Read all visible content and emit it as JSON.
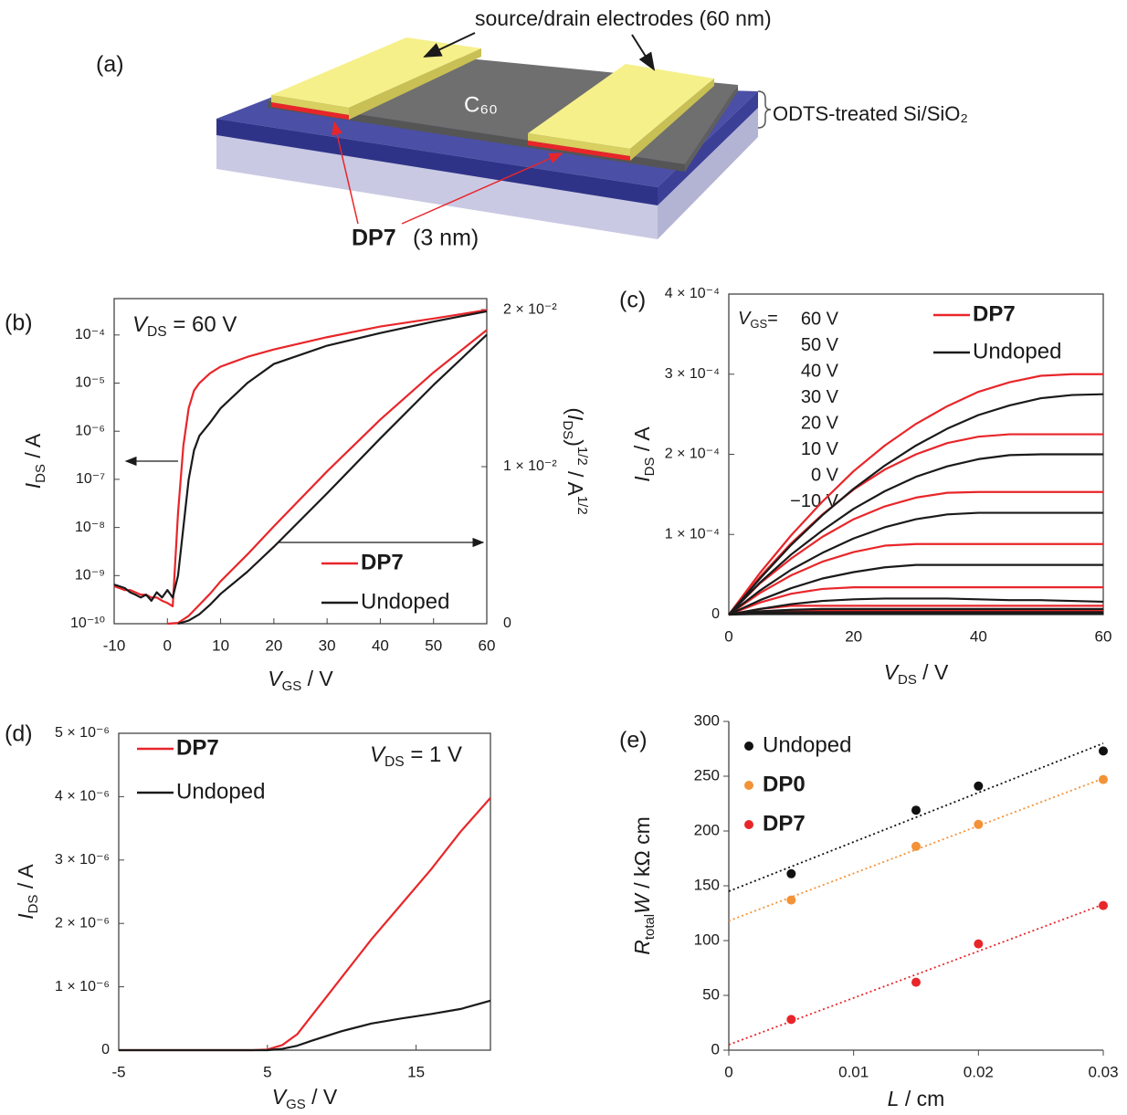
{
  "diagram": {
    "panel_label": "(a)",
    "electrodes_label": "source/drain electrodes (60 nm)",
    "semiconductor_label": "C₆₀",
    "substrate_label": "ODTS-treated Si/SiO₂",
    "dopant_name": "DP7",
    "dopant_thickness": "(3 nm)"
  },
  "chart_data": [
    {
      "type": "line",
      "panel_label": "(b)",
      "annotation": [
        {
          "text": "V",
          "style": "italic"
        },
        {
          "text": "DS",
          "style": "sub"
        },
        {
          "text": " = 60 V",
          "style": "plain"
        }
      ],
      "xlabel": [
        {
          "text": "V",
          "style": "italic"
        },
        {
          "text": "GS",
          "style": "sub"
        },
        {
          "text": " / V",
          "style": "plain"
        }
      ],
      "ylabel": [
        {
          "text": "I",
          "style": "italic"
        },
        {
          "text": "DS",
          "style": "sub"
        },
        {
          "text": " / A",
          "style": "plain"
        }
      ],
      "y2label": [
        {
          "text": "(",
          "style": "plain"
        },
        {
          "text": "I",
          "style": "italic"
        },
        {
          "text": "DS",
          "style": "sub"
        },
        {
          "text": ")",
          "style": "plain"
        },
        {
          "text": "1/2",
          "style": "sup"
        },
        {
          "text": " / A",
          "style": "plain"
        },
        {
          "text": "1/2",
          "style": "sup"
        }
      ],
      "xlim": [
        -10,
        60
      ],
      "xticks": [
        -10,
        0,
        10,
        20,
        30,
        40,
        50,
        60
      ],
      "yscale": "log",
      "ylim": [
        1e-10,
        0.00057
      ],
      "yticks": [
        {
          "value": 1e-10,
          "label": "10⁻¹⁰"
        },
        {
          "value": 1e-09,
          "label": "10⁻⁹"
        },
        {
          "value": 1e-08,
          "label": "10⁻⁸"
        },
        {
          "value": 1e-07,
          "label": "10⁻⁷"
        },
        {
          "value": 1e-06,
          "label": "10⁻⁶"
        },
        {
          "value": 1e-05,
          "label": "10⁻⁵"
        },
        {
          "value": 0.0001,
          "label": "10⁻⁴"
        }
      ],
      "y2lim": [
        0,
        0.0207
      ],
      "y2ticks": [
        0,
        {
          "value": 0.01,
          "label": "1 × 10⁻²"
        },
        {
          "value": 0.02,
          "label": "2 × 10⁻²"
        }
      ],
      "frame": true,
      "legend": "lower right",
      "series": [
        {
          "name": "DP7",
          "color": "#e8262a",
          "bold": true,
          "curves": [
            {
              "x": [
                -10,
                -9,
                -8,
                -7,
                -6,
                -5,
                -4,
                -3,
                -2,
                -1,
                0,
                1,
                2,
                3,
                4,
                5,
                6,
                8,
                10,
                15,
                20,
                30,
                40,
                50,
                60
              ],
              "values": [
                6e-10,
                5.5e-10,
                5e-10,
                5e-10,
                4.5e-10,
                4e-10,
                4e-10,
                3.5e-10,
                3.5e-10,
                3e-10,
                2.7e-10,
                2.3e-10,
                2e-08,
                5e-07,
                3e-06,
                7e-06,
                1e-05,
                1.6e-05,
                2.2e-05,
                3.5e-05,
                5e-05,
                9e-05,
                0.00015,
                0.00022,
                0.00033
              ]
            },
            {
              "axis": "y2",
              "x": [
                0,
                2,
                4,
                6,
                8,
                10,
                15,
                20,
                30,
                40,
                50,
                60
              ],
              "values": [
                0,
                5e-05,
                0.0005,
                0.0012,
                0.0019,
                0.0027,
                0.0044,
                0.0062,
                0.0097,
                0.013,
                0.016,
                0.0187
              ]
            }
          ]
        },
        {
          "name": "Undoped",
          "color": "#1a1a1a",
          "bold": false,
          "curves": [
            {
              "x": [
                -10,
                -9,
                -8,
                -7,
                -6,
                -5,
                -4,
                -3,
                -2,
                -1,
                0,
                1,
                2,
                3,
                4,
                5,
                6,
                8,
                10,
                15,
                20,
                30,
                40,
                50,
                60
              ],
              "values": [
                6.5e-10,
                6e-10,
                5.5e-10,
                4.5e-10,
                4e-10,
                3.5e-10,
                4e-10,
                3e-10,
                4.5e-10,
                3.5e-10,
                5e-10,
                3.5e-10,
                1e-09,
                1e-08,
                1e-07,
                4e-07,
                8e-07,
                1.5e-06,
                3e-06,
                1e-05,
                2.5e-05,
                6e-05,
                0.00011,
                0.00019,
                0.00031
              ]
            },
            {
              "axis": "y2",
              "x": [
                2,
                4,
                6,
                8,
                10,
                15,
                20,
                30,
                40,
                50,
                60
              ],
              "values": [
                0,
                0.0002,
                0.0006,
                0.0012,
                0.0019,
                0.0033,
                0.0049,
                0.0083,
                0.0118,
                0.0152,
                0.0184
              ]
            }
          ]
        }
      ]
    },
    {
      "type": "line",
      "panel_label": "(c)",
      "xlabel": [
        {
          "text": "V",
          "style": "italic"
        },
        {
          "text": "DS",
          "style": "sub"
        },
        {
          "text": " / V",
          "style": "plain"
        }
      ],
      "ylabel": [
        {
          "text": "I",
          "style": "italic"
        },
        {
          "text": "DS",
          "style": "sub"
        },
        {
          "text": " / A",
          "style": "plain"
        }
      ],
      "xlim": [
        0,
        60
      ],
      "xticks": [
        0,
        20,
        40,
        60
      ],
      "ylim": [
        0,
        0.0004
      ],
      "yticks": [
        0,
        {
          "value": 0.0001,
          "label": "1 × 10⁻⁴"
        },
        {
          "value": 0.0002,
          "label": "2 × 10⁻⁴"
        },
        {
          "value": 0.0003,
          "label": "3 × 10⁻⁴"
        },
        {
          "value": 0.0004,
          "label": "4 × 10⁻⁴"
        }
      ],
      "frame": true,
      "legend": "upper right",
      "gate_title": [
        {
          "text": "V",
          "style": "italic"
        },
        {
          "text": "GS",
          "style": "sub"
        },
        {
          "text": "=",
          "style": "plain"
        }
      ],
      "gate_labels": [
        "60 V",
        "50 V",
        "40 V",
        "30 V",
        "20 V",
        "10 V",
        "0 V",
        "−10 V"
      ],
      "x": [
        0,
        5,
        10,
        15,
        20,
        25,
        30,
        35,
        40,
        45,
        50,
        55,
        60
      ],
      "series": [
        {
          "name": "DP7",
          "color": "#e8262a",
          "bold": true,
          "curves": [
            {
              "values": [
                0,
                5.2e-05,
                9.9e-05,
                0.000141,
                0.000179,
                0.000211,
                0.000238,
                0.00026,
                0.000278,
                0.00029,
                0.000298,
                0.0003,
                0.0003
              ]
            },
            {
              "values": [
                0,
                4.7e-05,
                8.9e-05,
                0.000125,
                0.000156,
                0.000181,
                0.0002,
                0.000214,
                0.000222,
                0.000225,
                0.000225,
                0.000225,
                0.000225
              ]
            },
            {
              "values": [
                0,
                3.9e-05,
                7e-05,
                9.7e-05,
                0.000119,
                0.000135,
                0.000146,
                0.000152,
                0.000153,
                0.000153,
                0.000153,
                0.000153,
                0.000153
              ]
            },
            {
              "values": [
                0,
                2.7e-05,
                4.9e-05,
                6.6e-05,
                7.8e-05,
                8.6e-05,
                8.8e-05,
                8.8e-05,
                8.8e-05,
                8.8e-05,
                8.8e-05,
                8.8e-05,
                8.8e-05
              ]
            },
            {
              "values": [
                0,
                1.5e-05,
                2.6e-05,
                3.2e-05,
                3.4e-05,
                3.4e-05,
                3.4e-05,
                3.4e-05,
                3.4e-05,
                3.4e-05,
                3.4e-05,
                3.4e-05,
                3.4e-05
              ]
            },
            {
              "values": [
                0,
                7e-06,
                1.1e-05,
                1.1e-05,
                1.1e-05,
                1.1e-05,
                1.1e-05,
                1.1e-05,
                1.1e-05,
                1.1e-05,
                1.1e-05,
                1.1e-05,
                1.1e-05
              ]
            },
            {
              "values": [
                0,
                4e-06,
                5e-06,
                5e-06,
                5e-06,
                5e-06,
                5e-06,
                5e-06,
                5e-06,
                5e-06,
                5e-06,
                5e-06,
                5e-06
              ]
            },
            {
              "values": [
                0,
                3e-06,
                3e-06,
                3e-06,
                3e-06,
                3e-06,
                3e-06,
                3e-06,
                3e-06,
                3e-06,
                3e-06,
                3e-06,
                3e-06
              ]
            }
          ]
        },
        {
          "name": "Undoped",
          "color": "#1a1a1a",
          "bold": false,
          "curves": [
            {
              "values": [
                0,
                4.5e-05,
                8.7e-05,
                0.000124,
                0.000157,
                0.000186,
                0.000211,
                0.000232,
                0.000249,
                0.000261,
                0.00027,
                0.000274,
                0.000275
              ]
            },
            {
              "values": [
                0,
                4e-05,
                7.5e-05,
                0.000105,
                0.000132,
                0.000154,
                0.000172,
                0.000185,
                0.000194,
                0.000199,
                0.0002,
                0.0002,
                0.0002
              ]
            },
            {
              "values": [
                0,
                3e-05,
                5.6e-05,
                7.7e-05,
                9.5e-05,
                0.000109,
                0.000119,
                0.000125,
                0.000127,
                0.000127,
                0.000127,
                0.000127,
                0.000127
              ]
            },
            {
              "values": [
                0,
                1.8e-05,
                3.3e-05,
                4.5e-05,
                5.3e-05,
                5.9e-05,
                6.2e-05,
                6.2e-05,
                6.2e-05,
                6.2e-05,
                6.2e-05,
                6.2e-05,
                6.2e-05
              ]
            },
            {
              "values": [
                0,
                7e-06,
                1.3e-05,
                1.7e-05,
                1.9e-05,
                2e-05,
                2e-05,
                2e-05,
                1.9e-05,
                1.8e-05,
                1.8e-05,
                1.7e-05,
                1.6e-05
              ]
            },
            {
              "values": [
                0,
                4e-06,
                6e-06,
                7e-06,
                7e-06,
                7e-06,
                7e-06,
                7e-06,
                7e-06,
                7e-06,
                7e-06,
                7e-06,
                7e-06
              ]
            },
            {
              "values": [
                0,
                2e-06,
                3e-06,
                3e-06,
                3e-06,
                3e-06,
                3e-06,
                3e-06,
                3e-06,
                3e-06,
                3e-06,
                3e-06,
                3e-06
              ]
            },
            {
              "values": [
                0,
                1e-06,
                1e-06,
                1e-06,
                1e-06,
                1e-06,
                1e-06,
                1e-06,
                1e-06,
                1e-06,
                1e-06,
                1e-06,
                1e-06
              ]
            }
          ]
        }
      ]
    },
    {
      "type": "line",
      "panel_label": "(d)",
      "annotation": [
        {
          "text": "V",
          "style": "italic"
        },
        {
          "text": "DS",
          "style": "sub"
        },
        {
          "text": " = 1 V",
          "style": "plain"
        }
      ],
      "xlabel": [
        {
          "text": "V",
          "style": "italic"
        },
        {
          "text": "GS",
          "style": "sub"
        },
        {
          "text": " / V",
          "style": "plain"
        }
      ],
      "ylabel": [
        {
          "text": "I",
          "style": "italic"
        },
        {
          "text": "DS",
          "style": "sub"
        },
        {
          "text": " / A",
          "style": "plain"
        }
      ],
      "xlim": [
        -5,
        20
      ],
      "xticks": [
        -5,
        5,
        15
      ],
      "ylim": [
        0,
        5e-06
      ],
      "yticks": [
        0,
        {
          "value": 1e-06,
          "label": "1 × 10⁻⁶"
        },
        {
          "value": 2e-06,
          "label": "2 × 10⁻⁶"
        },
        {
          "value": 3e-06,
          "label": "3 × 10⁻⁶"
        },
        {
          "value": 4e-06,
          "label": "4 × 10⁻⁶"
        },
        {
          "value": 5e-06,
          "label": "5 × 10⁻⁶"
        }
      ],
      "frame": true,
      "legend": "upper left",
      "series": [
        {
          "name": "DP7",
          "color": "#e8262a",
          "bold": true,
          "x": [
            -5,
            4,
            5,
            6,
            7,
            8,
            9,
            10,
            12,
            14,
            16,
            18,
            20
          ],
          "values": [
            0,
            0,
            1e-08,
            8e-08,
            2.5e-07,
            5.5e-07,
            8.5e-07,
            1.15e-06,
            1.75e-06,
            2.3e-06,
            2.85e-06,
            3.45e-06,
            3.98e-06
          ]
        },
        {
          "name": "Undoped",
          "color": "#1a1a1a",
          "bold": false,
          "x": [
            -5,
            5,
            6,
            7,
            8,
            10,
            12,
            14,
            16,
            18,
            20
          ],
          "values": [
            0,
            0,
            2e-08,
            7e-08,
            1.5e-07,
            3e-07,
            4.2e-07,
            5e-07,
            5.7e-07,
            6.5e-07,
            7.8e-07
          ]
        }
      ]
    },
    {
      "type": "scatter",
      "panel_label": "(e)",
      "xlabel": [
        {
          "text": "L",
          "style": "italic"
        },
        {
          "text": " / cm",
          "style": "plain"
        }
      ],
      "ylabel": [
        {
          "text": "R",
          "style": "italic"
        },
        {
          "text": "total",
          "style": "sub"
        },
        {
          "text": "W",
          "style": "italic"
        },
        {
          "text": "  / kΩ cm",
          "style": "plain"
        }
      ],
      "xlim": [
        0,
        0.03
      ],
      "xticks": [
        0,
        0.01,
        0.02,
        0.03
      ],
      "ylim": [
        0,
        300
      ],
      "yticks": [
        0,
        50,
        100,
        150,
        200,
        250,
        300
      ],
      "frame": false,
      "legend": "upper left",
      "x": [
        0.005,
        0.015,
        0.02,
        0.03
      ],
      "trend_x": [
        0,
        0.03
      ],
      "series": [
        {
          "name": "Undoped",
          "color": "#111111",
          "bold": false,
          "values": [
            161,
            219,
            241,
            273
          ],
          "trend": [
            145,
            280
          ]
        },
        {
          "name": "DP0",
          "color": "#f39237",
          "bold": true,
          "values": [
            137,
            186,
            206,
            247
          ],
          "trend": [
            118,
            248
          ]
        },
        {
          "name": "DP7",
          "color": "#e8262a",
          "bold": true,
          "values": [
            28,
            62,
            97,
            132
          ],
          "trend": [
            5,
            133
          ]
        }
      ]
    }
  ]
}
